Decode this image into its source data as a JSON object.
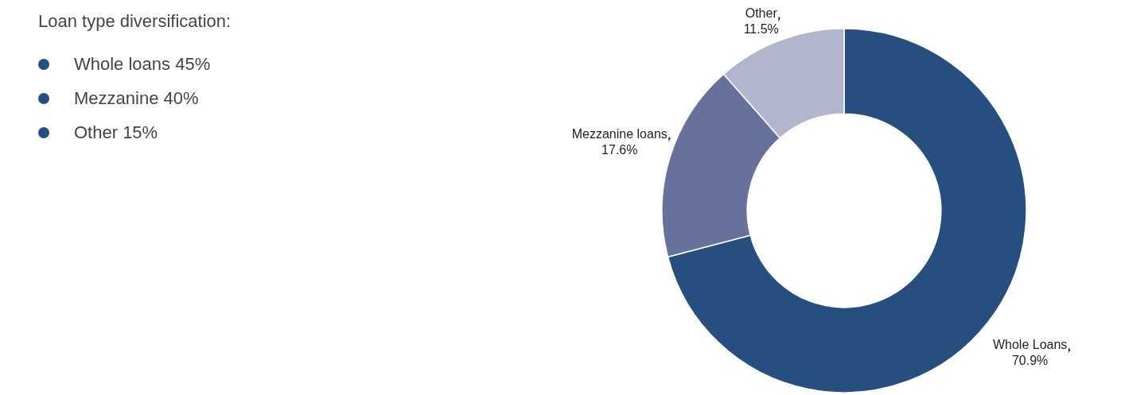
{
  "chart_data": {
    "type": "donut",
    "title": "Loan type diversification:",
    "annotations": [
      "Whole loans 45%",
      "Mezzanine 40%",
      "Other 15%"
    ],
    "categories": [
      "Whole Loans",
      "Mezzanine loans",
      "Other"
    ],
    "values": [
      70.9,
      17.6,
      11.5
    ],
    "value_labels": [
      "70.9%",
      "17.6%",
      "11.5%"
    ],
    "colors": [
      "#264f80",
      "#67729c",
      "#b1b6cc"
    ],
    "legend": false
  }
}
